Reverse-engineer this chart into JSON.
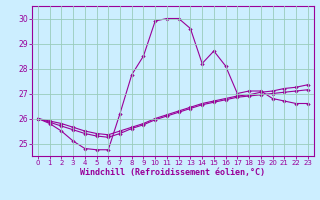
{
  "xlabel": "Windchill (Refroidissement éolien,°C)",
  "background_color": "#cceeff",
  "grid_color": "#99ccbb",
  "line_color": "#990099",
  "xlim": [
    -0.5,
    23.5
  ],
  "ylim": [
    24.5,
    30.5
  ],
  "yticks": [
    25,
    26,
    27,
    28,
    29,
    30
  ],
  "xticks": [
    0,
    1,
    2,
    3,
    4,
    5,
    6,
    7,
    8,
    9,
    10,
    11,
    12,
    13,
    14,
    15,
    16,
    17,
    18,
    19,
    20,
    21,
    22,
    23
  ],
  "hours": [
    0,
    1,
    2,
    3,
    4,
    5,
    6,
    7,
    8,
    9,
    10,
    11,
    12,
    13,
    14,
    15,
    16,
    17,
    18,
    19,
    20,
    21,
    22,
    23
  ],
  "line1": [
    26.0,
    25.8,
    25.5,
    25.1,
    24.8,
    24.75,
    24.75,
    26.2,
    27.75,
    28.5,
    29.9,
    30.0,
    30.0,
    29.6,
    28.2,
    28.7,
    28.1,
    27.0,
    27.1,
    27.1,
    26.8,
    26.7,
    26.6,
    26.6
  ],
  "line2": [
    26.0,
    25.85,
    25.7,
    25.55,
    25.4,
    25.3,
    25.25,
    25.4,
    25.6,
    25.75,
    25.95,
    26.1,
    26.25,
    26.4,
    26.55,
    26.65,
    26.75,
    26.85,
    26.9,
    26.95,
    27.0,
    27.05,
    27.1,
    27.15
  ],
  "line3": [
    26.0,
    25.9,
    25.8,
    25.65,
    25.5,
    25.4,
    25.35,
    25.5,
    25.65,
    25.8,
    26.0,
    26.15,
    26.3,
    26.45,
    26.6,
    26.7,
    26.8,
    26.9,
    26.95,
    27.05,
    27.1,
    27.2,
    27.25,
    27.35
  ]
}
